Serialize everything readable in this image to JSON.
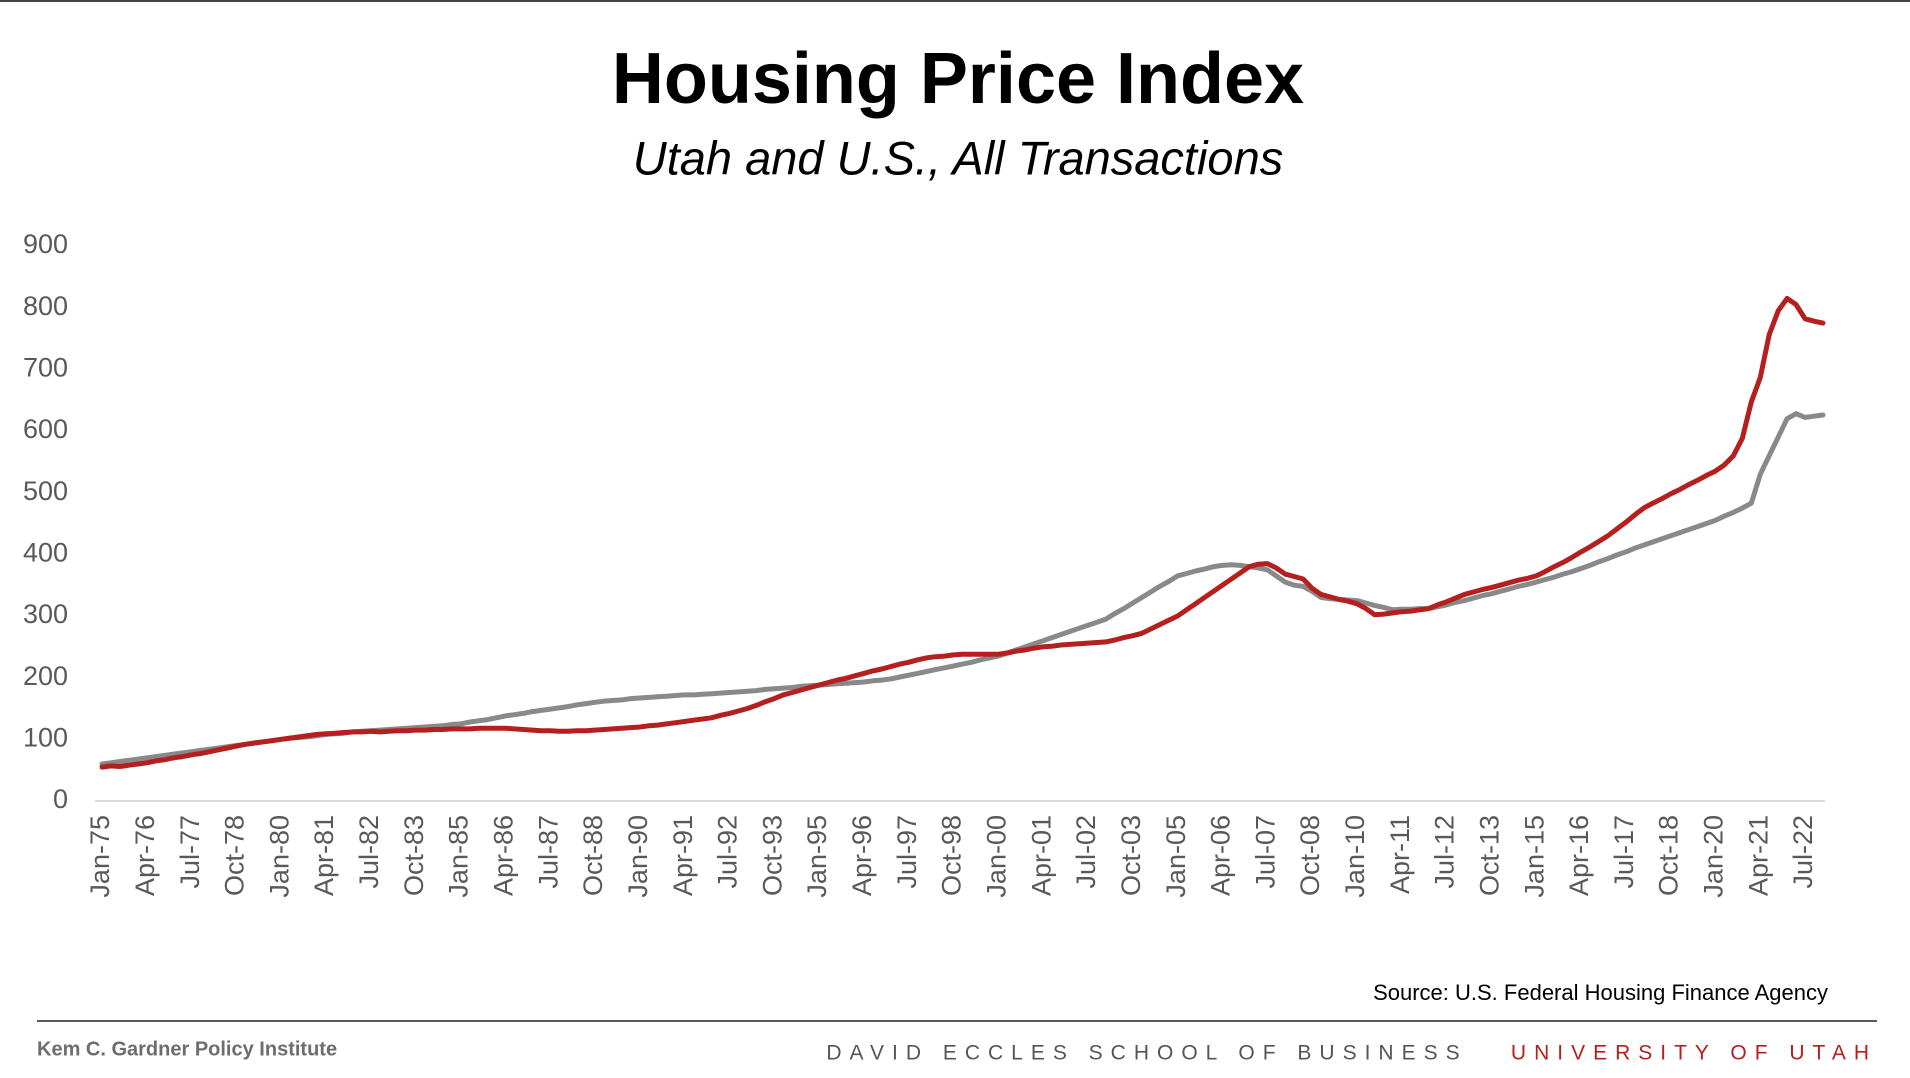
{
  "chart_data": {
    "type": "line",
    "title": "Housing Price Index",
    "subtitle": "Utah and U.S., All Transactions",
    "source": "Source: U.S. Federal Housing Finance Agency",
    "footer": {
      "left": "Kem C. Gardner Policy Institute",
      "center": "DAVID ECCLES SCHOOL OF BUSINESS",
      "right": "UNIVERSITY OF UTAH"
    },
    "categories": [
      "Jan-75",
      null,
      null,
      null,
      null,
      "Apr-76",
      null,
      null,
      null,
      null,
      "Jul-77",
      null,
      null,
      null,
      null,
      "Oct-78",
      null,
      null,
      null,
      null,
      "Jan-80",
      null,
      null,
      null,
      null,
      "Apr-81",
      null,
      null,
      null,
      null,
      "Jul-82",
      null,
      null,
      null,
      null,
      "Oct-83",
      null,
      null,
      null,
      null,
      "Jan-85",
      null,
      null,
      null,
      null,
      "Apr-86",
      null,
      null,
      null,
      null,
      "Jul-87",
      null,
      null,
      null,
      null,
      "Oct-88",
      null,
      null,
      null,
      null,
      "Jan-90",
      null,
      null,
      null,
      null,
      "Apr-91",
      null,
      null,
      null,
      null,
      "Jul-92",
      null,
      null,
      null,
      null,
      "Oct-93",
      null,
      null,
      null,
      null,
      "Jan-95",
      null,
      null,
      null,
      null,
      "Apr-96",
      null,
      null,
      null,
      null,
      "Jul-97",
      null,
      null,
      null,
      null,
      "Oct-98",
      null,
      null,
      null,
      null,
      "Jan-00",
      null,
      null,
      null,
      null,
      "Apr-01",
      null,
      null,
      null,
      null,
      "Jul-02",
      null,
      null,
      null,
      null,
      "Oct-03",
      null,
      null,
      null,
      null,
      "Jan-05",
      null,
      null,
      null,
      null,
      "Apr-06",
      null,
      null,
      null,
      null,
      "Jul-07",
      null,
      null,
      null,
      null,
      "Oct-08",
      null,
      null,
      null,
      null,
      "Jan-10",
      null,
      null,
      null,
      null,
      "Apr-11",
      null,
      null,
      null,
      null,
      "Jul-12",
      null,
      null,
      null,
      null,
      "Oct-13",
      null,
      null,
      null,
      null,
      "Jan-15",
      null,
      null,
      null,
      null,
      "Apr-16",
      null,
      null,
      null,
      null,
      "Jul-17",
      null,
      null,
      null,
      null,
      "Oct-18",
      null,
      null,
      null,
      null,
      "Jan-20",
      null,
      null,
      null,
      null,
      "Apr-21",
      null,
      null,
      null,
      null,
      "Jul-22",
      null,
      null
    ],
    "series": [
      {
        "color": "#898989",
        "values": [
          60,
          62,
          64,
          66,
          68,
          70,
          72,
          74,
          76,
          78,
          80,
          82,
          84,
          86,
          88,
          90,
          92,
          94,
          96,
          98,
          100,
          102,
          103,
          104,
          106,
          108,
          109,
          110,
          112,
          113,
          114,
          115,
          116,
          117,
          118,
          119,
          120,
          121,
          122,
          124,
          125,
          128,
          130,
          132,
          135,
          138,
          140,
          142,
          145,
          147,
          149,
          151,
          153,
          156,
          158,
          160,
          162,
          163,
          164,
          166,
          167,
          168,
          169,
          170,
          171,
          172,
          172,
          173,
          174,
          175,
          176,
          177,
          178,
          179,
          181,
          182,
          183,
          184,
          186,
          187,
          188,
          189,
          190,
          191,
          192,
          193,
          195,
          196,
          198,
          201,
          204,
          207,
          210,
          213,
          216,
          219,
          222,
          225,
          229,
          232,
          235,
          240,
          245,
          250,
          255,
          260,
          265,
          270,
          275,
          280,
          285,
          290,
          295,
          304,
          312,
          321,
          330,
          339,
          348,
          356,
          365,
          369,
          373,
          376,
          380,
          382,
          383,
          382,
          380,
          378,
          375,
          365,
          355,
          350,
          348,
          340,
          330,
          328,
          327,
          326,
          325,
          321,
          317,
          314,
          310,
          311,
          311,
          312,
          312,
          315,
          318,
          322,
          325,
          329,
          333,
          336,
          340,
          344,
          348,
          351,
          355,
          359,
          363,
          368,
          372,
          377,
          382,
          388,
          393,
          399,
          404,
          410,
          415,
          420,
          425,
          430,
          435,
          440,
          445,
          450,
          455,
          462,
          468,
          475,
          483,
          530,
          560,
          590,
          620,
          628,
          622,
          624,
          626
        ]
      },
      {
        "color": "#b5201f",
        "values": [
          55,
          57,
          56,
          58,
          60,
          62,
          65,
          67,
          70,
          72,
          75,
          77,
          80,
          83,
          86,
          89,
          92,
          94,
          96,
          98,
          100,
          102,
          104,
          106,
          108,
          109,
          110,
          111,
          112,
          112,
          113,
          112,
          113,
          114,
          114,
          115,
          115,
          116,
          116,
          117,
          117,
          117,
          118,
          118,
          118,
          118,
          117,
          116,
          115,
          114,
          114,
          113,
          113,
          114,
          114,
          115,
          116,
          117,
          118,
          119,
          120,
          122,
          123,
          125,
          127,
          129,
          131,
          133,
          135,
          139,
          142,
          146,
          150,
          155,
          161,
          166,
          172,
          176,
          180,
          184,
          188,
          192,
          196,
          199,
          203,
          207,
          211,
          214,
          218,
          222,
          225,
          229,
          232,
          234,
          235,
          237,
          238,
          238,
          238,
          238,
          238,
          240,
          243,
          245,
          248,
          250,
          251,
          253,
          254,
          255,
          256,
          257,
          258,
          261,
          265,
          268,
          272,
          279,
          286,
          293,
          300,
          310,
          320,
          330,
          340,
          350,
          360,
          370,
          380,
          384,
          385,
          378,
          368,
          364,
          360,
          345,
          335,
          331,
          327,
          324,
          320,
          312,
          302,
          303,
          305,
          307,
          308,
          310,
          312,
          318,
          323,
          329,
          335,
          339,
          343,
          346,
          350,
          354,
          358,
          361,
          365,
          372,
          380,
          387,
          395,
          404,
          412,
          421,
          430,
          441,
          452,
          464,
          475,
          483,
          490,
          498,
          505,
          513,
          520,
          528,
          535,
          545,
          560,
          588,
          647,
          687,
          756,
          795,
          815,
          805,
          782,
          778,
          775
        ]
      }
    ],
    "ylim": [
      0,
      900
    ],
    "yticks": [
      0,
      100,
      200,
      300,
      400,
      500,
      600,
      700,
      800,
      900
    ],
    "grid": false
  }
}
